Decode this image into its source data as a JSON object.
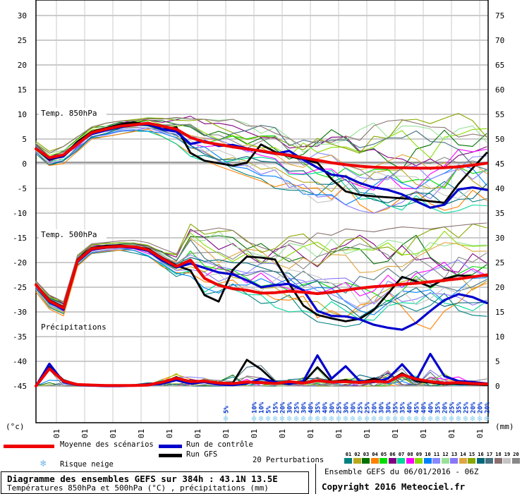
{
  "legend": {
    "mean_label": "Moyenne des scénarios",
    "control_label": "Run de contrôle",
    "gfs_label": "Run GFS",
    "perturbations_label": "20 Perturbations",
    "snow_label": "Risque neige",
    "snowflake_icon": "❄",
    "mean_color": "#ee0000",
    "control_color": "#0000cc",
    "gfs_color": "#000000"
  },
  "perturbation_legend": {
    "numbers": [
      "01",
      "02",
      "03",
      "04",
      "05",
      "06",
      "07",
      "08",
      "09",
      "10",
      "11",
      "12",
      "13",
      "14",
      "15",
      "16",
      "17",
      "18",
      "19",
      "20"
    ],
    "colors": [
      "#008080",
      "#b8a81c",
      "#007000",
      "#ff8000",
      "#00dd00",
      "#800080",
      "#00d898",
      "#ff00ff",
      "#88dd00",
      "#0080ff",
      "#8888ff",
      "#98e098",
      "#8878f8",
      "#dfa640",
      "#88a800",
      "#006878",
      "#48707f",
      "#8a7070",
      "#c4c4c4",
      "#888888"
    ]
  },
  "snow": {
    "flake_icon": "❄",
    "flake_color": "#8ed0f0",
    "label_color": "#0033cc",
    "first": {
      "hour": 162,
      "percent": "5%"
    },
    "start_hour": 186,
    "step_hours": 6,
    "percents": [
      "10%",
      "10%",
      "5%",
      "15%",
      "20%",
      "30%",
      "25%",
      "30%",
      "40%",
      "35%",
      "40%",
      "30%",
      "25%",
      "30%",
      "30%",
      "25%",
      "25%",
      "20%",
      "30%",
      "30%",
      "35%",
      "35%",
      "40%",
      "45%",
      "40%",
      "40%",
      "35%",
      "20%",
      "25%",
      "35%",
      "25%",
      "20%",
      "20%",
      "20%"
    ]
  },
  "chart_data": {
    "type": "line",
    "title": "Diagramme des ensembles GEFS sur 384h : 43.1N 13.5E",
    "x_hours_step": 12,
    "x_hours_max": 384,
    "x_tick_labels": [
      "07/01",
      "08/01",
      "09/01",
      "10/01",
      "11/01",
      "12/01",
      "13/01",
      "14/01",
      "15/01",
      "16/01",
      "17/01",
      "18/01",
      "19/01",
      "20/01",
      "21/01",
      "22/01"
    ],
    "left_axis": {
      "label": "(°c)",
      "unit": "°C",
      "ticks": [
        30,
        25,
        20,
        15,
        10,
        5,
        0,
        -5,
        -10,
        -15,
        -20,
        -25,
        -30,
        -35,
        -40,
        -45
      ]
    },
    "right_axis": {
      "label": "(mm)",
      "unit": "mm",
      "ticks": [
        75,
        70,
        65,
        60,
        55,
        50,
        45,
        40,
        35,
        30,
        25,
        20,
        15,
        10,
        5,
        0
      ]
    },
    "grid": true,
    "panels": [
      {
        "name": "Temp. 850hPa",
        "series": {
          "mean": [
            3.0,
            1.2,
            1.8,
            4.0,
            6.3,
            7.0,
            7.6,
            7.9,
            8.2,
            7.6,
            7.0,
            5.3,
            4.4,
            3.9,
            3.4,
            3.0,
            2.6,
            2.1,
            1.7,
            1.2,
            0.7,
            0.2,
            -0.2,
            -0.5,
            -0.7,
            -0.8,
            -0.8,
            -0.9,
            -0.9,
            -0.8,
            -0.6,
            -0.3,
            0.1
          ],
          "control": [
            3.0,
            1.0,
            1.5,
            4.2,
            6.0,
            6.8,
            7.4,
            7.8,
            8.0,
            7.0,
            6.5,
            4.0,
            4.6,
            3.6,
            3.8,
            3.1,
            2.5,
            2.0,
            2.6,
            0.8,
            -0.8,
            -2.2,
            -2.6,
            -3.9,
            -4.8,
            -5.3,
            -6.2,
            -7.6,
            -8.9,
            -8.3,
            -5.2,
            -4.8,
            -5.3
          ],
          "gfs": [
            3.0,
            0.8,
            1.6,
            4.5,
            6.5,
            7.2,
            8.0,
            8.4,
            7.9,
            7.0,
            7.4,
            2.2,
            0.6,
            0.1,
            -0.4,
            0.2,
            3.9,
            2.4,
            1.5,
            0.9,
            0.2,
            -3.1,
            -5.6,
            -6.3,
            -6.6,
            -6.8,
            -7.0,
            -7.2,
            -7.6,
            -7.9,
            -4.1,
            -0.9,
            2.2
          ]
        },
        "envelope": {
          "lower": [
            2,
            -0.5,
            0,
            2.5,
            5,
            5.5,
            6,
            6.5,
            6.5,
            5.5,
            4,
            1.5,
            0.5,
            -0.5,
            -1.5,
            -2.5,
            -3.5,
            -5,
            -7,
            -9,
            -9.5,
            -9,
            -9,
            -9.5,
            -10,
            -10,
            -10.5,
            -10,
            -10,
            -10,
            -9.5,
            -9,
            -8.5
          ],
          "upper": [
            4.5,
            2.5,
            3.5,
            5.5,
            7.5,
            8.2,
            8.8,
            9.2,
            9.5,
            9.2,
            9.5,
            9.8,
            9,
            8.8,
            9,
            8.8,
            9,
            8.5,
            8.2,
            8,
            8.2,
            8.5,
            9,
            8.8,
            8.5,
            8.8,
            9.2,
            9,
            8.8,
            9.2,
            10.2,
            9.5,
            9
          ]
        }
      },
      {
        "name": "Temp. 500hPa",
        "series": {
          "mean": [
            -24.5,
            -27.8,
            -29.2,
            -19.6,
            -17.2,
            -16.9,
            -16.7,
            -16.8,
            -17.4,
            -19.2,
            -20.8,
            -19.5,
            -23.2,
            -24.6,
            -25.3,
            -25.6,
            -26.2,
            -26.1,
            -25.8,
            -26.0,
            -26.3,
            -26.0,
            -25.6,
            -25.2,
            -24.9,
            -24.7,
            -24.4,
            -24.2,
            -23.9,
            -23.6,
            -23.3,
            -22.9,
            -22.5
          ],
          "control": [
            -24.5,
            -28.0,
            -29.5,
            -19.8,
            -17.4,
            -17.0,
            -16.8,
            -17.0,
            -17.6,
            -19.6,
            -21.0,
            -20.2,
            -21.1,
            -22.0,
            -22.4,
            -23.6,
            -25.0,
            -24.6,
            -24.3,
            -25.6,
            -29.8,
            -30.8,
            -30.9,
            -31.5,
            -32.6,
            -33.2,
            -33.6,
            -32.2,
            -29.8,
            -27.6,
            -26.4,
            -27.0,
            -28.2
          ],
          "gfs": [
            -24.5,
            -27.6,
            -29.0,
            -19.4,
            -17.0,
            -16.6,
            -16.5,
            -16.9,
            -17.2,
            -19.0,
            -20.6,
            -21.6,
            -26.6,
            -27.9,
            -21.5,
            -18.8,
            -19.0,
            -19.4,
            -24.3,
            -28.7,
            -30.6,
            -31.3,
            -31.9,
            -31.4,
            -29.6,
            -26.3,
            -22.9,
            -23.8,
            -24.9,
            -23.3,
            -22.6,
            -22.8,
            -22.7
          ]
        },
        "envelope": {
          "lower": [
            -26,
            -29.5,
            -30.8,
            -21,
            -18.5,
            -18,
            -18,
            -18.2,
            -19,
            -21,
            -23,
            -23.5,
            -26.5,
            -27.5,
            -28,
            -28.5,
            -29,
            -29.5,
            -30,
            -30.5,
            -32,
            -32.5,
            -33,
            -33.5,
            -33.5,
            -34,
            -34.5,
            -34,
            -33.5,
            -33,
            -32.5,
            -32,
            -31.5
          ],
          "upper": [
            -23.5,
            -26.5,
            -27.8,
            -18.5,
            -16,
            -15.8,
            -15.5,
            -15.5,
            -16,
            -17.2,
            -18,
            -12.2,
            -13.5,
            -13,
            -13.5,
            -14,
            -14.5,
            -14,
            -13.8,
            -14.2,
            -14,
            -13.5,
            -13.2,
            -13.5,
            -13.8,
            -13.2,
            -12.8,
            -13,
            -13.2,
            -12.8,
            -12.5,
            -12.2,
            -12
          ]
        }
      },
      {
        "name": "Précipitations",
        "unit": "mm",
        "series": {
          "mean": [
            0,
            3.5,
            1.0,
            0.3,
            0.2,
            0.1,
            0.1,
            0.1,
            0.2,
            0.8,
            1.6,
            0.9,
            1.0,
            0.6,
            0.5,
            0.8,
            0.7,
            0.5,
            0.9,
            0.6,
            1.1,
            0.8,
            0.9,
            0.7,
            1.0,
            0.8,
            2.3,
            1.4,
            0.9,
            0.6,
            0.7,
            0.5,
            0.4
          ],
          "control": [
            0,
            4.5,
            0.8,
            0.2,
            0.1,
            0,
            0,
            0.1,
            0.2,
            0.5,
            1.2,
            0.5,
            0.8,
            0.3,
            0.2,
            0.5,
            1.5,
            0.8,
            0.4,
            1.0,
            6.2,
            1.5,
            4.0,
            1.0,
            0.8,
            1.5,
            4.4,
            1.2,
            6.5,
            2.0,
            1.0,
            0.8,
            0.5
          ],
          "gfs": [
            0,
            3.8,
            1.2,
            0.3,
            0.1,
            0,
            0,
            0.1,
            0.3,
            0.6,
            1.8,
            0.6,
            1.0,
            0.4,
            0.6,
            5.3,
            3.4,
            0.8,
            0.5,
            0.7,
            3.8,
            0.9,
            1.2,
            0.6,
            1.5,
            0.8,
            2.6,
            1.0,
            0.7,
            0.4,
            0.5,
            0.3,
            0.2
          ]
        },
        "envelope": {
          "lower": [
            0,
            0,
            0,
            0,
            0,
            0,
            0,
            0,
            0,
            0,
            0,
            0,
            0,
            0,
            0,
            0,
            0,
            0,
            0,
            0,
            0,
            0,
            0,
            0,
            0,
            0,
            0,
            0,
            0,
            0,
            0,
            0,
            0
          ],
          "upper": [
            8,
            7.5,
            3,
            1,
            0.5,
            0.4,
            0.5,
            0.6,
            1,
            2.5,
            4,
            3,
            3.5,
            2.5,
            4,
            7,
            6,
            3.5,
            3,
            4.5,
            7,
            4,
            5,
            4,
            4.5,
            5,
            6,
            5.5,
            7,
            4.5,
            4,
            3.5,
            3
          ]
        }
      }
    ]
  },
  "footer": {
    "left_title": "Diagramme des ensembles GEFS sur 384h : 43.1N 13.5E",
    "left_subtitle": "Températures 850hPa et 500hPa (°C) , précipitations (mm)",
    "right_line1": "Ensemble GEFS du 06/01/2016 - 06Z",
    "right_line2": "Copyright 2016 Meteociel.fr"
  }
}
